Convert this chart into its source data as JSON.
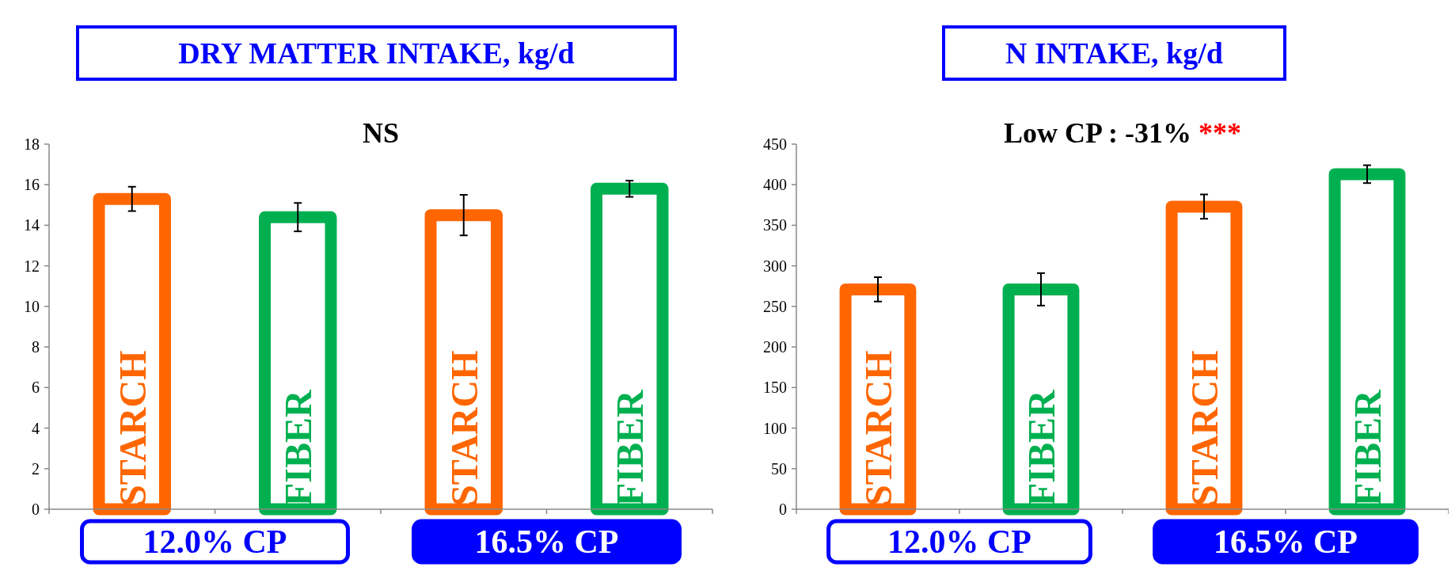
{
  "chart_data": [
    {
      "type": "bar",
      "title": "DRY MATTER INTAKE, kg/d",
      "subtitle": "NS",
      "categories": [
        "STARCH",
        "FIBER",
        "STARCH",
        "FIBER"
      ],
      "values": [
        15.3,
        14.4,
        14.5,
        15.8
      ],
      "errors": [
        0.6,
        0.7,
        1.0,
        0.4
      ],
      "colors": [
        "#ff6600",
        "#00b050",
        "#ff6600",
        "#00b050"
      ],
      "ylim": [
        0,
        18
      ],
      "yticks": [
        0,
        2,
        4,
        6,
        8,
        10,
        12,
        14,
        16,
        18
      ],
      "annotations": [
        "12.0% CP",
        "16.5% CP"
      ]
    },
    {
      "type": "bar",
      "title": "N INTAKE, kg/d",
      "subtitle": "Low CP : -31% ***",
      "categories": [
        "STARCH",
        "FIBER",
        "STARCH",
        "FIBER"
      ],
      "values": [
        271,
        271,
        373,
        413
      ],
      "errors": [
        15,
        20,
        15,
        11
      ],
      "colors": [
        "#ff6600",
        "#00b050",
        "#ff6600",
        "#00b050"
      ],
      "ylim": [
        0,
        450
      ],
      "yticks": [
        0,
        50,
        100,
        150,
        200,
        250,
        300,
        350,
        400,
        450
      ],
      "annotations": [
        "12.0% CP",
        "16.5% CP"
      ]
    }
  ]
}
